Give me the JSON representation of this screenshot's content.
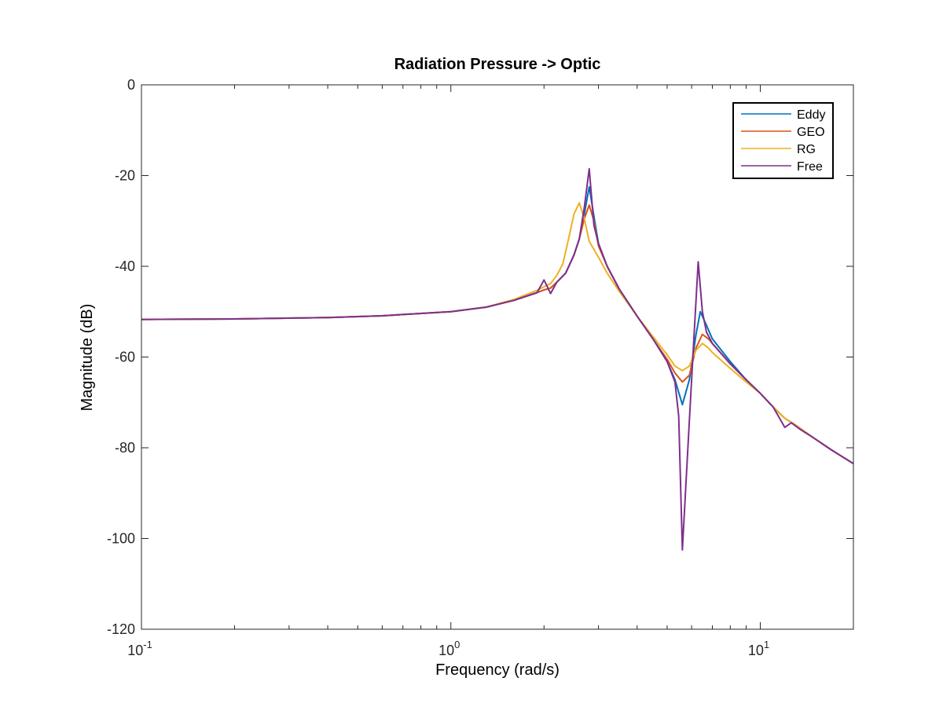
{
  "chart_data": {
    "type": "line",
    "title": "Radiation Pressure -> Optic",
    "xlabel": "Frequency  (rad/s)",
    "ylabel": "Magnitude (dB)",
    "xscale": "log",
    "xlim": [
      0.1,
      20
    ],
    "ylim": [
      -120,
      0
    ],
    "xticks": [
      {
        "value": 0.1,
        "base": "10",
        "exp": "-1"
      },
      {
        "value": 1,
        "base": "10",
        "exp": "0"
      },
      {
        "value": 10,
        "base": "10",
        "exp": "1"
      }
    ],
    "yticks": [
      {
        "value": 0,
        "label": "0"
      },
      {
        "value": -20,
        "label": "-20"
      },
      {
        "value": -40,
        "label": "-40"
      },
      {
        "value": -60,
        "label": "-60"
      },
      {
        "value": -80,
        "label": "-80"
      },
      {
        "value": -100,
        "label": "-100"
      },
      {
        "value": -120,
        "label": "-120"
      }
    ],
    "grid": false,
    "legend_position": "top-right",
    "series": [
      {
        "name": "Eddy",
        "color": "#0072BD",
        "points": [
          [
            0.1,
            -51.7
          ],
          [
            0.2,
            -51.6
          ],
          [
            0.4,
            -51.3
          ],
          [
            0.6,
            -50.9
          ],
          [
            0.8,
            -50.4
          ],
          [
            1.0,
            -50.0
          ],
          [
            1.3,
            -49.0
          ],
          [
            1.6,
            -47.5
          ],
          [
            1.9,
            -45.8
          ],
          [
            2.0,
            -45.2
          ],
          [
            2.1,
            -44.8
          ],
          [
            2.2,
            -43.5
          ],
          [
            2.35,
            -41.5
          ],
          [
            2.5,
            -37.5
          ],
          [
            2.6,
            -34.0
          ],
          [
            2.7,
            -28.5
          ],
          [
            2.8,
            -22.5
          ],
          [
            2.9,
            -29.0
          ],
          [
            3.0,
            -35.0
          ],
          [
            3.2,
            -40.0
          ],
          [
            3.5,
            -45.0
          ],
          [
            4.0,
            -51.0
          ],
          [
            4.5,
            -56.0
          ],
          [
            5.0,
            -61.0
          ],
          [
            5.3,
            -65.0
          ],
          [
            5.6,
            -70.5
          ],
          [
            5.9,
            -65.0
          ],
          [
            6.2,
            -55.0
          ],
          [
            6.4,
            -50.0
          ],
          [
            6.7,
            -53.0
          ],
          [
            7.0,
            -56.0
          ],
          [
            8.0,
            -61.0
          ],
          [
            9.0,
            -65.0
          ],
          [
            10.0,
            -68.0
          ],
          [
            11.0,
            -71.0
          ],
          [
            12.0,
            -73.5
          ],
          [
            13.0,
            -75.0
          ],
          [
            15.0,
            -78.0
          ],
          [
            17.0,
            -80.5
          ],
          [
            20.0,
            -83.5
          ]
        ]
      },
      {
        "name": "GEO",
        "color": "#D95319",
        "points": [
          [
            0.1,
            -51.7
          ],
          [
            0.2,
            -51.6
          ],
          [
            0.4,
            -51.3
          ],
          [
            0.6,
            -50.9
          ],
          [
            0.8,
            -50.4
          ],
          [
            1.0,
            -50.0
          ],
          [
            1.3,
            -49.0
          ],
          [
            1.6,
            -47.5
          ],
          [
            1.9,
            -45.8
          ],
          [
            2.0,
            -45.2
          ],
          [
            2.1,
            -44.8
          ],
          [
            2.2,
            -43.5
          ],
          [
            2.35,
            -41.5
          ],
          [
            2.5,
            -37.5
          ],
          [
            2.6,
            -34.0
          ],
          [
            2.7,
            -29.5
          ],
          [
            2.8,
            -26.5
          ],
          [
            2.9,
            -30.0
          ],
          [
            3.0,
            -35.5
          ],
          [
            3.2,
            -40.0
          ],
          [
            3.5,
            -45.0
          ],
          [
            4.0,
            -51.0
          ],
          [
            4.5,
            -56.0
          ],
          [
            5.0,
            -60.5
          ],
          [
            5.3,
            -63.5
          ],
          [
            5.6,
            -65.5
          ],
          [
            5.9,
            -64.0
          ],
          [
            6.2,
            -58.0
          ],
          [
            6.5,
            -55.0
          ],
          [
            6.8,
            -56.0
          ],
          [
            7.0,
            -57.0
          ],
          [
            8.0,
            -61.5
          ],
          [
            9.0,
            -65.0
          ],
          [
            10.0,
            -68.0
          ],
          [
            11.0,
            -71.0
          ],
          [
            12.0,
            -73.5
          ],
          [
            13.0,
            -75.0
          ],
          [
            15.0,
            -78.0
          ],
          [
            17.0,
            -80.5
          ],
          [
            20.0,
            -83.5
          ]
        ]
      },
      {
        "name": "RG",
        "color": "#EDB120",
        "points": [
          [
            0.1,
            -51.7
          ],
          [
            0.2,
            -51.6
          ],
          [
            0.4,
            -51.3
          ],
          [
            0.6,
            -50.9
          ],
          [
            0.8,
            -50.4
          ],
          [
            1.0,
            -50.0
          ],
          [
            1.3,
            -49.0
          ],
          [
            1.6,
            -47.3
          ],
          [
            1.9,
            -45.3
          ],
          [
            2.0,
            -44.5
          ],
          [
            2.1,
            -43.8
          ],
          [
            2.2,
            -42.0
          ],
          [
            2.3,
            -39.5
          ],
          [
            2.4,
            -34.0
          ],
          [
            2.5,
            -28.5
          ],
          [
            2.6,
            -26.0
          ],
          [
            2.7,
            -29.5
          ],
          [
            2.8,
            -34.5
          ],
          [
            3.0,
            -38.0
          ],
          [
            3.2,
            -41.5
          ],
          [
            3.5,
            -45.5
          ],
          [
            4.0,
            -51.0
          ],
          [
            4.5,
            -55.5
          ],
          [
            5.0,
            -59.5
          ],
          [
            5.3,
            -62.0
          ],
          [
            5.6,
            -63.0
          ],
          [
            5.9,
            -62.0
          ],
          [
            6.2,
            -58.5
          ],
          [
            6.5,
            -57.0
          ],
          [
            6.8,
            -58.0
          ],
          [
            7.0,
            -59.0
          ],
          [
            8.0,
            -62.5
          ],
          [
            9.0,
            -65.5
          ],
          [
            10.0,
            -68.0
          ],
          [
            11.0,
            -71.0
          ],
          [
            12.0,
            -73.5
          ],
          [
            13.0,
            -75.0
          ],
          [
            15.0,
            -78.0
          ],
          [
            17.0,
            -80.5
          ],
          [
            20.0,
            -83.5
          ]
        ]
      },
      {
        "name": "Free",
        "color": "#7E2F8E",
        "points": [
          [
            0.1,
            -51.7
          ],
          [
            0.2,
            -51.6
          ],
          [
            0.4,
            -51.3
          ],
          [
            0.6,
            -50.9
          ],
          [
            0.8,
            -50.4
          ],
          [
            1.0,
            -50.0
          ],
          [
            1.3,
            -49.0
          ],
          [
            1.6,
            -47.5
          ],
          [
            1.9,
            -45.8
          ],
          [
            2.0,
            -43.0
          ],
          [
            2.1,
            -46.0
          ],
          [
            2.2,
            -43.5
          ],
          [
            2.35,
            -41.5
          ],
          [
            2.5,
            -37.5
          ],
          [
            2.6,
            -34.0
          ],
          [
            2.7,
            -27.0
          ],
          [
            2.8,
            -18.5
          ],
          [
            2.9,
            -31.0
          ],
          [
            3.0,
            -35.0
          ],
          [
            3.2,
            -40.0
          ],
          [
            3.5,
            -45.0
          ],
          [
            4.0,
            -51.0
          ],
          [
            4.5,
            -56.0
          ],
          [
            5.0,
            -61.0
          ],
          [
            5.3,
            -65.5
          ],
          [
            5.45,
            -73.0
          ],
          [
            5.6,
            -102.5
          ],
          [
            5.9,
            -74.0
          ],
          [
            6.1,
            -56.0
          ],
          [
            6.3,
            -39.0
          ],
          [
            6.5,
            -50.0
          ],
          [
            6.7,
            -54.5
          ],
          [
            7.0,
            -57.0
          ],
          [
            8.0,
            -61.5
          ],
          [
            9.0,
            -65.0
          ],
          [
            10.0,
            -68.0
          ],
          [
            11.0,
            -71.0
          ],
          [
            12.0,
            -75.5
          ],
          [
            12.6,
            -74.5
          ],
          [
            13.5,
            -76.0
          ],
          [
            15.0,
            -78.0
          ],
          [
            17.0,
            -80.5
          ],
          [
            20.0,
            -83.5
          ]
        ]
      }
    ]
  }
}
